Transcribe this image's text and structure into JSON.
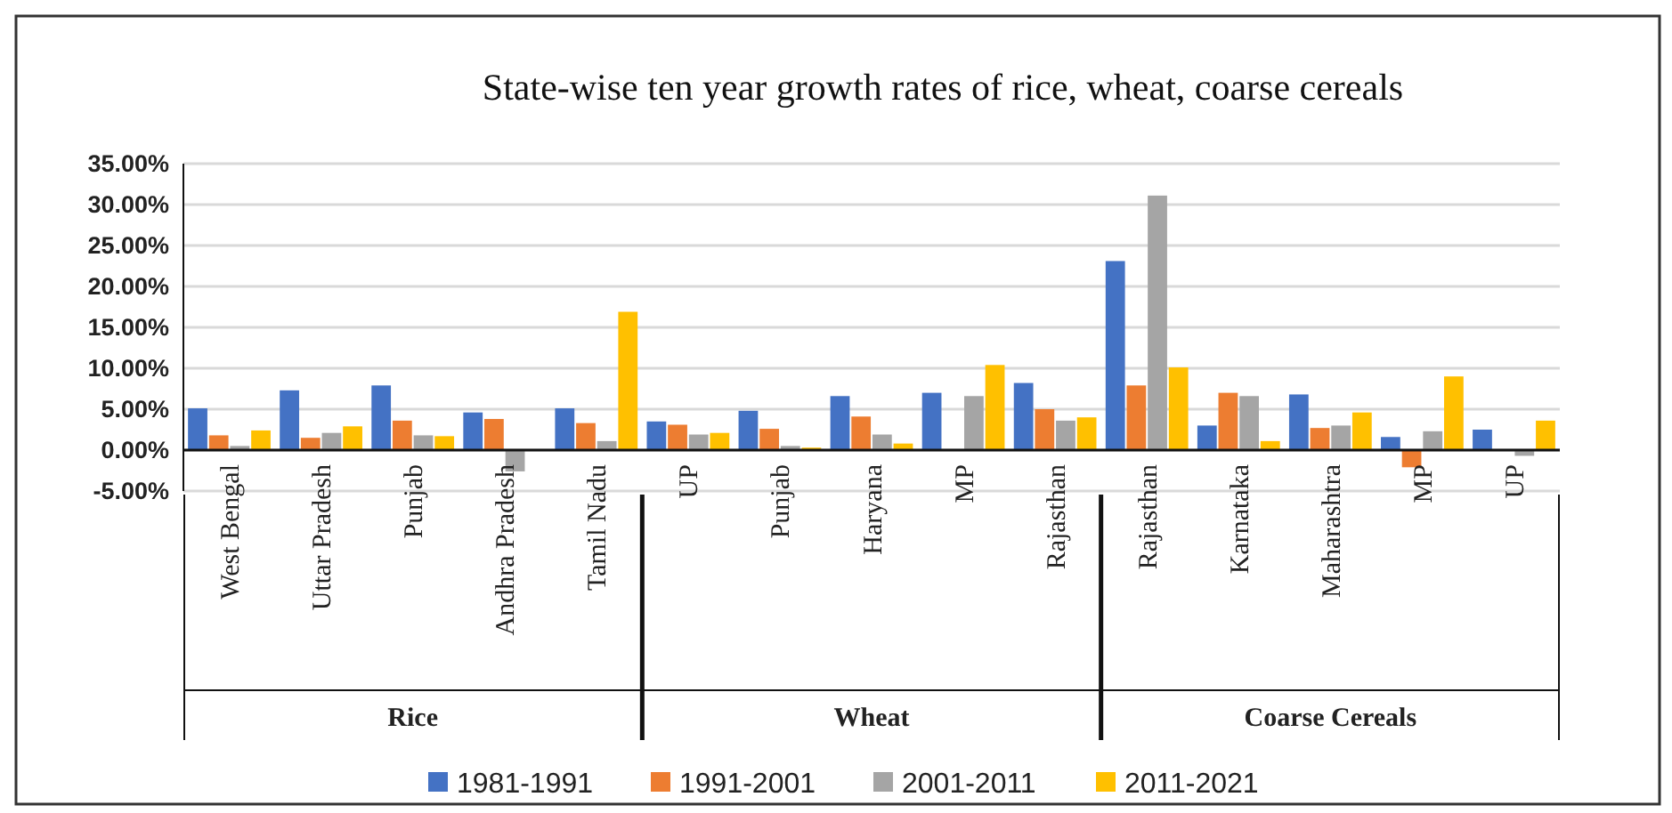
{
  "chart_data": {
    "type": "bar",
    "title": "State-wise ten year growth rates of rice, wheat, coarse cereals",
    "categories": [
      "West Bengal",
      "Uttar Pradesh",
      "Punjab",
      "Andhra Pradesh",
      "Tamil Nadu",
      "UP",
      "Punjab",
      "Haryana",
      "MP",
      "Rajasthan",
      "Rajasthan",
      "Karnataka",
      "Maharashtra",
      "MP",
      "UP"
    ],
    "series": [
      {
        "name": "1981-1991",
        "color": "#4472c4",
        "values": [
          5.1,
          7.3,
          7.9,
          4.6,
          5.1,
          3.5,
          4.8,
          6.6,
          7.0,
          8.2,
          23.1,
          3.0,
          6.8,
          1.6,
          2.5
        ]
      },
      {
        "name": "1991-2001",
        "color": "#ed7d31",
        "values": [
          1.8,
          1.5,
          3.6,
          3.8,
          3.3,
          3.1,
          2.6,
          4.1,
          null,
          5.0,
          7.9,
          7.0,
          2.7,
          -2.1,
          null
        ]
      },
      {
        "name": "2001-2011",
        "color": "#a5a5a5",
        "values": [
          0.5,
          2.1,
          1.8,
          -2.6,
          1.1,
          1.9,
          0.5,
          1.9,
          6.6,
          3.6,
          31.1,
          6.6,
          3.0,
          2.3,
          -0.7
        ]
      },
      {
        "name": "2011-2021",
        "color": "#ffc000",
        "values": [
          2.4,
          2.9,
          1.7,
          null,
          16.9,
          2.1,
          0.3,
          0.8,
          10.4,
          4.0,
          10.1,
          1.1,
          4.6,
          9.0,
          3.6
        ]
      }
    ],
    "annotations": [
      "Rice",
      "Wheat",
      "Coarse Cereals"
    ],
    "ylim": [
      -5,
      35
    ],
    "yticks": [
      {
        "value": -5,
        "label": "-5.00%"
      },
      {
        "value": 0,
        "label": "0.00%"
      },
      {
        "value": 5,
        "label": "5.00%"
      },
      {
        "value": 10,
        "label": "10.00%"
      },
      {
        "value": 15,
        "label": "15.00%"
      },
      {
        "value": 20,
        "label": "20.00%"
      },
      {
        "value": 25,
        "label": "25.00%"
      },
      {
        "value": 30,
        "label": "30.00%"
      },
      {
        "value": 35,
        "label": "35.00%"
      }
    ],
    "grid": "y",
    "legend": "bottom"
  }
}
